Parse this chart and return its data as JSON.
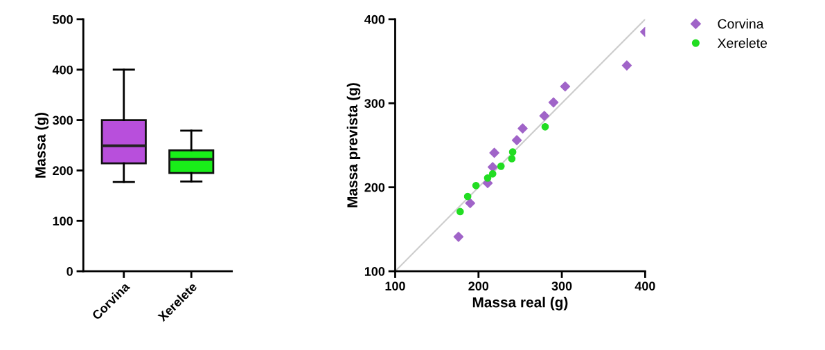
{
  "chart_data": [
    {
      "type": "box",
      "ylabel": "Massa (g)",
      "categories": [
        "Corvina",
        "Xerelete"
      ],
      "colors": [
        "#b84fdc",
        "#19ee19"
      ],
      "boxes": [
        {
          "low": 177,
          "q1": 214,
          "median": 249,
          "q3": 300,
          "high": 400
        },
        {
          "low": 178,
          "q1": 195,
          "median": 222,
          "q3": 240,
          "high": 279
        }
      ],
      "ylim": [
        0,
        500
      ],
      "yticks": [
        0,
        100,
        200,
        300,
        400,
        500
      ],
      "grid": false
    },
    {
      "type": "scatter",
      "xlabel": "Massa real (g)",
      "ylabel": "Massa prevista (g)",
      "xlim": [
        100,
        400
      ],
      "ylim": [
        100,
        400
      ],
      "xticks": [
        100,
        200,
        300,
        400
      ],
      "yticks": [
        100,
        200,
        300,
        400
      ],
      "grid": false,
      "legend": "top right",
      "series": [
        {
          "type": "line",
          "color": "#cccccc",
          "x": [
            100,
            400
          ],
          "values": [
            100,
            400
          ],
          "marker": "none"
        },
        {
          "name": "Corvina",
          "color": "#a064c8",
          "marker": "diamond",
          "x": [
            400,
            378,
            304,
            290,
            279,
            253,
            246,
            219,
            217,
            211,
            190,
            176
          ],
          "values": [
            385,
            345,
            320,
            301,
            285,
            270,
            256,
            241,
            224,
            205,
            181,
            141
          ]
        },
        {
          "name": "Xerelete",
          "color": "#22dd22",
          "marker": "circle",
          "x": [
            280,
            241,
            240,
            227,
            217,
            211,
            197,
            187,
            178
          ],
          "values": [
            272,
            242,
            234,
            225,
            216,
            211,
            202,
            189,
            171
          ]
        }
      ]
    }
  ]
}
